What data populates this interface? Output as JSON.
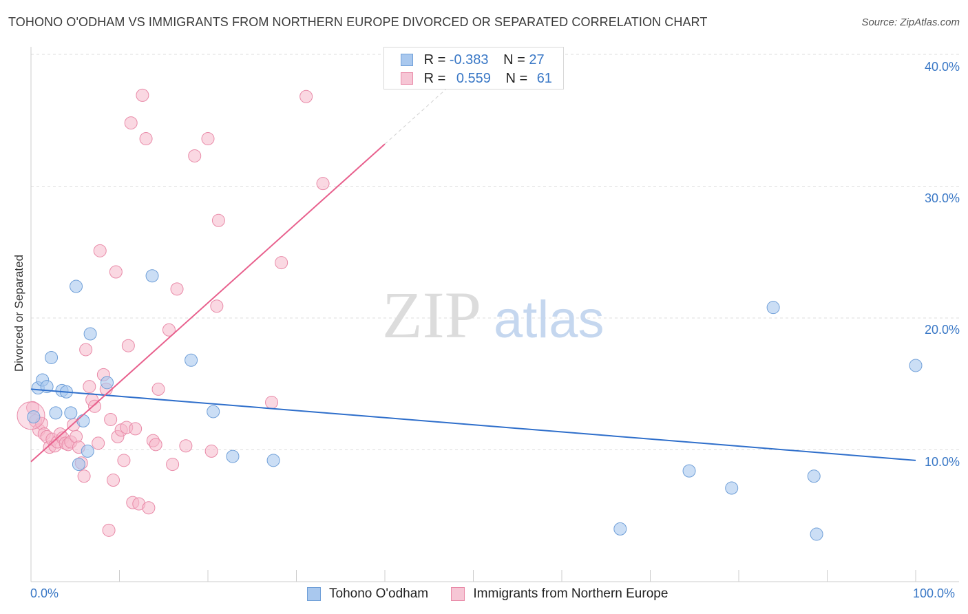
{
  "title": "TOHONO O'ODHAM VS IMMIGRANTS FROM NORTHERN EUROPE DIVORCED OR SEPARATED CORRELATION CHART",
  "source": "Source: ZipAtlas.com",
  "watermark": {
    "zip": "ZIP",
    "atlas": "atlas"
  },
  "colors": {
    "blue_fill": "#a9c8ee",
    "blue_stroke": "#6f9fd8",
    "blue_line": "#2f6fcb",
    "pink_fill": "#f6b8cb",
    "pink_stroke": "#e98aa8",
    "pink_line": "#e8608d",
    "tick_text": "#3a78c6",
    "grid": "#dddddd"
  },
  "legend_top": {
    "rows": [
      {
        "r_label": "R =",
        "r_value": "-0.383",
        "n_label": "N =",
        "n_value": "27"
      },
      {
        "r_label": "R =",
        "r_value": "0.559",
        "n_label": "N =",
        "n_value": "61"
      }
    ]
  },
  "chart_data": {
    "type": "scatter",
    "title": "TOHONO O'ODHAM VS IMMIGRANTS FROM NORTHERN EUROPE DIVORCED OR SEPARATED CORRELATION CHART",
    "xlabel": "",
    "ylabel": "Divorced or Separated",
    "xlim": [
      0,
      100
    ],
    "ylim": [
      0,
      42
    ],
    "x_tick_labels": [
      "0.0%",
      "100.0%"
    ],
    "y_ticks": [
      10,
      20,
      30,
      40
    ],
    "y_tick_labels": [
      "10.0%",
      "20.0%",
      "30.0%",
      "40.0%"
    ],
    "grid": true,
    "legend_position": "bottom",
    "series": [
      {
        "name": "Tohono O'odham",
        "color": "blue",
        "trend": {
          "x": [
            0,
            100
          ],
          "y": [
            14.6,
            9.2
          ]
        },
        "points": [
          {
            "x": 0.3,
            "y": 12.5
          },
          {
            "x": 0.8,
            "y": 14.7
          },
          {
            "x": 1.3,
            "y": 15.3
          },
          {
            "x": 1.8,
            "y": 14.8
          },
          {
            "x": 2.3,
            "y": 17.0
          },
          {
            "x": 2.8,
            "y": 12.8
          },
          {
            "x": 3.5,
            "y": 14.5
          },
          {
            "x": 4.0,
            "y": 14.4
          },
          {
            "x": 4.5,
            "y": 12.8
          },
          {
            "x": 5.1,
            "y": 22.4
          },
          {
            "x": 5.4,
            "y": 8.9
          },
          {
            "x": 5.9,
            "y": 12.2
          },
          {
            "x": 6.4,
            "y": 9.9
          },
          {
            "x": 6.7,
            "y": 18.8
          },
          {
            "x": 8.6,
            "y": 15.1
          },
          {
            "x": 13.7,
            "y": 23.2
          },
          {
            "x": 18.1,
            "y": 16.8
          },
          {
            "x": 20.6,
            "y": 12.9
          },
          {
            "x": 22.8,
            "y": 9.5
          },
          {
            "x": 27.4,
            "y": 9.2
          },
          {
            "x": 66.6,
            "y": 4.0
          },
          {
            "x": 74.4,
            "y": 8.4
          },
          {
            "x": 79.2,
            "y": 7.1
          },
          {
            "x": 83.9,
            "y": 20.8
          },
          {
            "x": 88.5,
            "y": 8.0
          },
          {
            "x": 88.8,
            "y": 3.6
          },
          {
            "x": 100.0,
            "y": 16.4
          }
        ]
      },
      {
        "name": "Immigrants from Northern Europe",
        "color": "pink",
        "trend": {
          "x": [
            0,
            40
          ],
          "y": [
            9.1,
            33.2
          ]
        },
        "points": [
          {
            "x": 0.2,
            "y": 13.2
          },
          {
            "x": 0.5,
            "y": 12.2
          },
          {
            "x": 0.9,
            "y": 11.5
          },
          {
            "x": 1.2,
            "y": 12.0
          },
          {
            "x": 1.5,
            "y": 11.2
          },
          {
            "x": 1.8,
            "y": 11.0
          },
          {
            "x": 2.1,
            "y": 10.2
          },
          {
            "x": 2.4,
            "y": 10.8
          },
          {
            "x": 2.7,
            "y": 10.3
          },
          {
            "x": 3.0,
            "y": 10.6
          },
          {
            "x": 3.3,
            "y": 11.2
          },
          {
            "x": 3.6,
            "y": 10.9
          },
          {
            "x": 3.9,
            "y": 10.5
          },
          {
            "x": 4.2,
            "y": 10.4
          },
          {
            "x": 4.5,
            "y": 10.6
          },
          {
            "x": 4.8,
            "y": 11.9
          },
          {
            "x": 5.1,
            "y": 11.0
          },
          {
            "x": 5.4,
            "y": 10.2
          },
          {
            "x": 5.7,
            "y": 9.0
          },
          {
            "x": 6.0,
            "y": 8.0
          },
          {
            "x": 6.2,
            "y": 17.6
          },
          {
            "x": 6.6,
            "y": 14.8
          },
          {
            "x": 6.9,
            "y": 13.8
          },
          {
            "x": 7.2,
            "y": 13.3
          },
          {
            "x": 7.6,
            "y": 10.5
          },
          {
            "x": 7.8,
            "y": 25.1
          },
          {
            "x": 8.2,
            "y": 15.7
          },
          {
            "x": 8.5,
            "y": 14.6
          },
          {
            "x": 8.8,
            "y": 3.9
          },
          {
            "x": 9.0,
            "y": 12.3
          },
          {
            "x": 9.3,
            "y": 7.7
          },
          {
            "x": 9.6,
            "y": 23.5
          },
          {
            "x": 9.8,
            "y": 11.0
          },
          {
            "x": 10.2,
            "y": 11.5
          },
          {
            "x": 10.5,
            "y": 9.2
          },
          {
            "x": 10.8,
            "y": 11.7
          },
          {
            "x": 11.0,
            "y": 17.9
          },
          {
            "x": 11.3,
            "y": 34.8
          },
          {
            "x": 11.5,
            "y": 6.0
          },
          {
            "x": 11.8,
            "y": 11.6
          },
          {
            "x": 12.2,
            "y": 5.9
          },
          {
            "x": 12.6,
            "y": 36.9
          },
          {
            "x": 13.0,
            "y": 33.6
          },
          {
            "x": 13.3,
            "y": 5.6
          },
          {
            "x": 13.8,
            "y": 10.7
          },
          {
            "x": 14.1,
            "y": 10.4
          },
          {
            "x": 14.4,
            "y": 14.6
          },
          {
            "x": 15.6,
            "y": 19.1
          },
          {
            "x": 16.0,
            "y": 8.9
          },
          {
            "x": 16.5,
            "y": 22.2
          },
          {
            "x": 17.5,
            "y": 10.3
          },
          {
            "x": 18.5,
            "y": 32.3
          },
          {
            "x": 20.0,
            "y": 33.6
          },
          {
            "x": 20.4,
            "y": 9.9
          },
          {
            "x": 21.0,
            "y": 20.9
          },
          {
            "x": 21.2,
            "y": 27.4
          },
          {
            "x": 27.2,
            "y": 13.6
          },
          {
            "x": 28.3,
            "y": 24.2
          },
          {
            "x": 31.1,
            "y": 36.8
          },
          {
            "x": 33.0,
            "y": 30.2
          },
          {
            "x": 0.0,
            "y": 12.6
          }
        ]
      }
    ]
  }
}
